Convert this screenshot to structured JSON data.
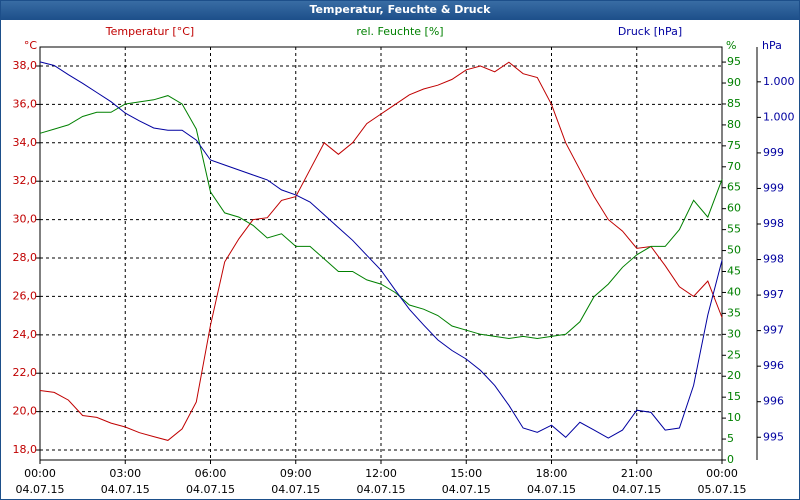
{
  "chart_data": {
    "type": "line",
    "title": "Temperatur, Feuchte & Druck",
    "ylabel": "°C",
    "y2label": "%",
    "y3label": "hPa",
    "x": [
      0,
      0.5,
      1,
      1.5,
      2,
      2.5,
      3,
      3.5,
      4,
      4.5,
      5,
      5.5,
      6,
      6.5,
      7,
      7.5,
      8,
      8.5,
      9,
      9.5,
      10,
      10.5,
      11,
      11.5,
      12,
      12.5,
      13,
      13.5,
      14,
      14.5,
      15,
      15.5,
      16,
      16.5,
      17,
      17.5,
      18,
      18.5,
      19,
      19.5,
      20,
      20.5,
      21,
      21.5,
      22,
      22.5,
      23,
      23.5,
      24
    ],
    "xlim": [
      0,
      24
    ],
    "xticks": [
      {
        "value": 0,
        "label": "00:00"
      },
      {
        "value": 3,
        "label": "03:00"
      },
      {
        "value": 6,
        "label": "06:00"
      },
      {
        "value": 9,
        "label": "09:00"
      },
      {
        "value": 12,
        "label": "12:00"
      },
      {
        "value": 15,
        "label": "15:00"
      },
      {
        "value": 18,
        "label": "18:00"
      },
      {
        "value": 21,
        "label": "21:00"
      },
      {
        "value": 24,
        "label": "00:00"
      }
    ],
    "xtick_dates": [
      "04.07.15",
      "04.07.15",
      "04.07.15",
      "04.07.15",
      "04.07.15",
      "04.07.15",
      "04.07.15",
      "04.07.15",
      "05.07.15"
    ],
    "ylim": [
      17.48,
      38.99
    ],
    "yticks": [
      {
        "value": 18,
        "label": "18,0"
      },
      {
        "value": 20,
        "label": "20,0"
      },
      {
        "value": 22,
        "label": "22,0"
      },
      {
        "value": 24,
        "label": "24,0"
      },
      {
        "value": 26,
        "label": "26,0"
      },
      {
        "value": 28,
        "label": "28,0"
      },
      {
        "value": 30,
        "label": "30,0"
      },
      {
        "value": 32,
        "label": "32,0"
      },
      {
        "value": 34,
        "label": "34,0"
      },
      {
        "value": 36,
        "label": "36,0"
      },
      {
        "value": 38,
        "label": "38,0"
      }
    ],
    "y2lim": [
      0,
      98.6
    ],
    "y2ticks": [
      0,
      5,
      10,
      15,
      20,
      25,
      30,
      35,
      40,
      45,
      50,
      55,
      60,
      65,
      70,
      75,
      80,
      85,
      90,
      95
    ],
    "y3lim": [
      994.68,
      1000.49
    ],
    "y3ticks": [
      {
        "value": 995,
        "label": "995"
      },
      {
        "value": 995.5,
        "label": "996"
      },
      {
        "value": 996,
        "label": "996"
      },
      {
        "value": 996.5,
        "label": "997"
      },
      {
        "value": 997,
        "label": "997"
      },
      {
        "value": 997.5,
        "label": "998"
      },
      {
        "value": 998,
        "label": "998"
      },
      {
        "value": 998.5,
        "label": "999"
      },
      {
        "value": 999,
        "label": "999"
      },
      {
        "value": 999.5,
        "label": "1.000"
      },
      {
        "value": 1000,
        "label": "1.000"
      }
    ],
    "grid": true,
    "series": [
      {
        "name": "Temperatur [°C]",
        "color": "#c00000",
        "axis": "y",
        "values": [
          21.1,
          21.0,
          20.6,
          19.8,
          19.7,
          19.4,
          19.2,
          18.9,
          18.7,
          18.5,
          19.1,
          20.5,
          24.5,
          27.8,
          29.0,
          30.0,
          30.1,
          31.0,
          31.2,
          32.6,
          34.0,
          33.4,
          34.0,
          35.0,
          35.5,
          36.0,
          36.5,
          36.8,
          37.0,
          37.3,
          37.8,
          38.0,
          37.7,
          38.2,
          37.6,
          37.4,
          36.0,
          34.0,
          32.6,
          31.2,
          30.0,
          29.4,
          28.5,
          28.6,
          27.6,
          26.5,
          26.0,
          26.8,
          24.9
        ]
      },
      {
        "name": "rel. Feuchte [%]",
        "color": "#008000",
        "axis": "y2",
        "values": [
          78,
          79,
          80,
          82,
          83,
          83,
          85,
          85.5,
          86,
          87,
          85,
          79,
          64,
          59,
          58,
          56,
          53,
          54,
          51,
          51,
          48,
          45,
          45,
          43,
          42,
          40,
          37,
          36,
          34.5,
          32,
          31,
          30,
          29.5,
          29,
          29.5,
          29,
          29.5,
          30,
          33,
          39,
          42,
          46,
          49,
          51,
          51,
          55,
          62,
          58,
          67
        ]
      },
      {
        "name": "Druck [hPa]",
        "color": "#0000a0",
        "axis": "y3",
        "values": [
          1000.28,
          1000.23,
          1000.1,
          999.98,
          999.85,
          999.72,
          999.56,
          999.45,
          999.35,
          999.32,
          999.32,
          999.18,
          998.9,
          998.83,
          998.76,
          998.69,
          998.62,
          998.48,
          998.41,
          998.31,
          998.13,
          997.95,
          997.77,
          997.56,
          997.35,
          997.07,
          996.8,
          996.58,
          996.37,
          996.22,
          996.1,
          995.94,
          995.73,
          995.45,
          995.13,
          995.07,
          995.17,
          995.0,
          995.21,
          995.1,
          994.99,
          995.1,
          995.38,
          995.35,
          995.1,
          995.13,
          995.73,
          996.72,
          997.49
        ]
      }
    ]
  }
}
